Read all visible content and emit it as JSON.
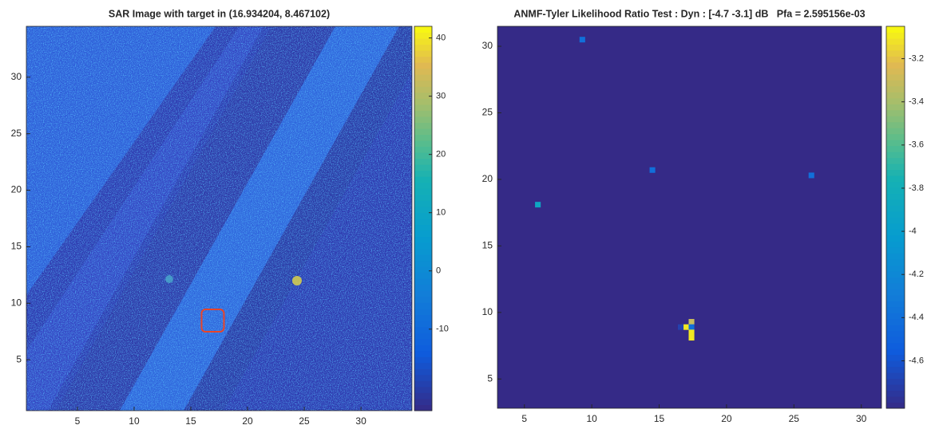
{
  "chart_data": [
    {
      "type": "image",
      "title": "SAR Image with target in (16.934204, 8.467102)",
      "target": {
        "x": 16.934204,
        "y": 8.467102
      },
      "xlim": [
        0.5,
        34.5
      ],
      "ylim": [
        0.5,
        34.5
      ],
      "xticks": [
        5,
        10,
        15,
        20,
        25,
        30
      ],
      "yticks": [
        5,
        10,
        15,
        20,
        25,
        30
      ],
      "clim": [
        -24,
        42
      ],
      "cticks": [
        -10,
        0,
        10,
        20,
        30,
        40
      ],
      "colormap": "parula"
    },
    {
      "type": "heatmap",
      "title": "ANMF-Tyler Likelihood Ratio Test : Dyn : [-4.7 -3.1] dB   Pfa = 2.595156e-03",
      "x": [
        9.3,
        14.5,
        26.3,
        6.0,
        17.4,
        17.0,
        17.4,
        16.6,
        17.4,
        17.4
      ],
      "y": [
        30.5,
        20.7,
        20.3,
        18.1,
        9.3,
        8.9,
        8.9,
        8.9,
        8.5,
        8.1
      ],
      "values": [
        -4.4,
        -4.4,
        -4.4,
        -3.9,
        -3.3,
        -3.1,
        -4.4,
        -4.7,
        -3.1,
        -3.1
      ],
      "xlim": [
        3.0,
        31.5
      ],
      "ylim": [
        2.8,
        31.5
      ],
      "xticks": [
        5,
        10,
        15,
        20,
        25,
        30
      ],
      "yticks": [
        5,
        10,
        15,
        20,
        25,
        30
      ],
      "clim": [
        -4.82,
        -3.05
      ],
      "cticks": [
        -4.6,
        -4.4,
        -4.2,
        -4,
        -3.8,
        -3.6,
        -3.4,
        -3.2
      ],
      "colormap": "parula"
    }
  ]
}
